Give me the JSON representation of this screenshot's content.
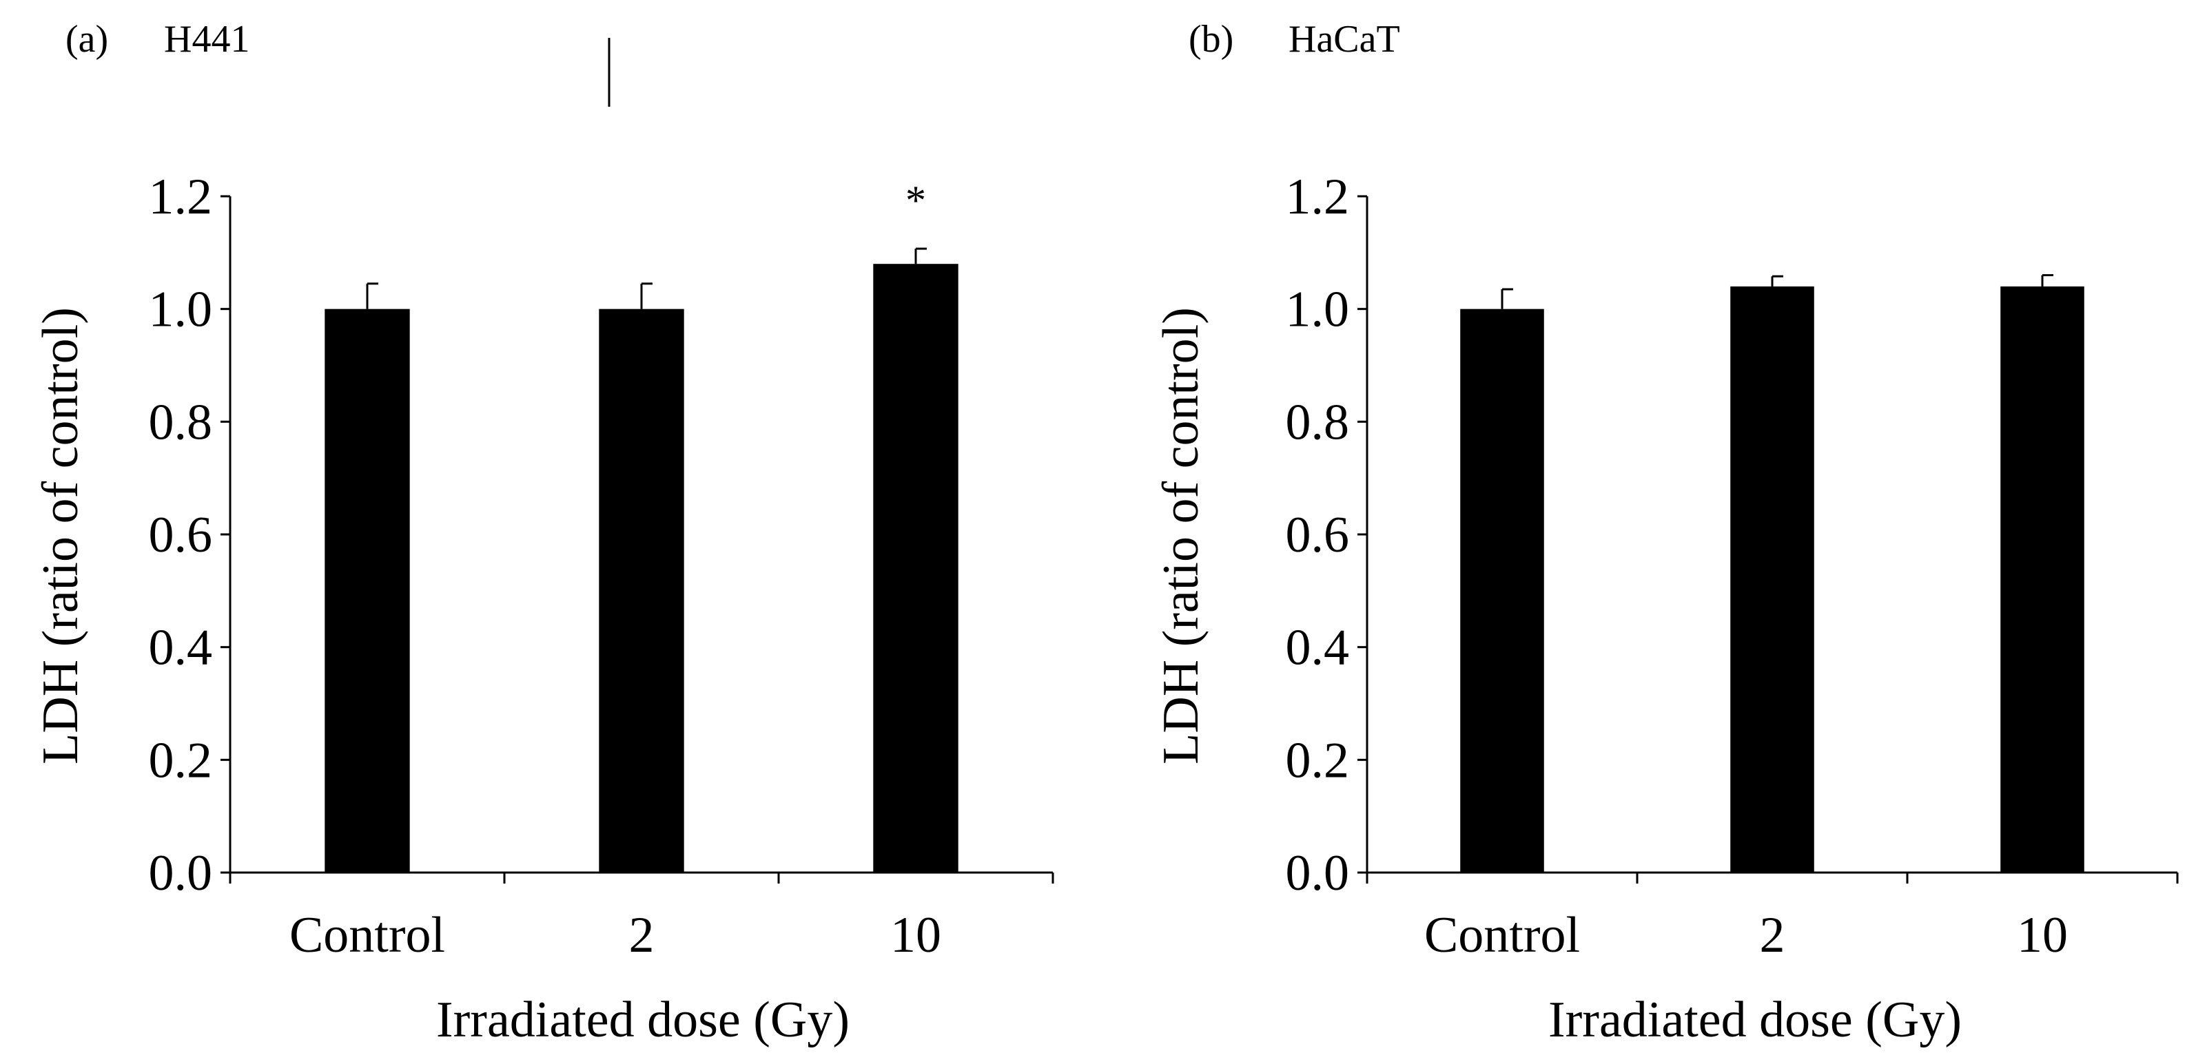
{
  "chart_data": [
    {
      "type": "bar",
      "panel_label": "(a)",
      "title": "H441",
      "categories": [
        "Control",
        "2",
        "10"
      ],
      "values": [
        1.0,
        1.0,
        1.08
      ],
      "errors": [
        0.045,
        0.045,
        0.027
      ],
      "annotations": [
        "",
        "",
        "*"
      ],
      "xlabel": "Irradiated dose (Gy)",
      "ylabel": "LDH (ratio of control)",
      "ylim": [
        0,
        1.2
      ],
      "yticks": [
        "0.0",
        "0.2",
        "0.4",
        "0.6",
        "0.8",
        "1.0",
        "1.2"
      ],
      "grid": false,
      "bar_color": "#000000"
    },
    {
      "type": "bar",
      "panel_label": "(b)",
      "title": "HaCaT",
      "categories": [
        "Control",
        "2",
        "10"
      ],
      "values": [
        1.0,
        1.04,
        1.04
      ],
      "errors": [
        0.035,
        0.018,
        0.02
      ],
      "annotations": [
        "",
        "",
        ""
      ],
      "xlabel": "Irradiated dose (Gy)",
      "ylabel": "LDH (ratio of control)",
      "ylim": [
        0,
        1.2
      ],
      "yticks": [
        "0.0",
        "0.2",
        "0.4",
        "0.6",
        "0.8",
        "1.0",
        "1.2"
      ],
      "grid": false,
      "bar_color": "#000000"
    }
  ]
}
